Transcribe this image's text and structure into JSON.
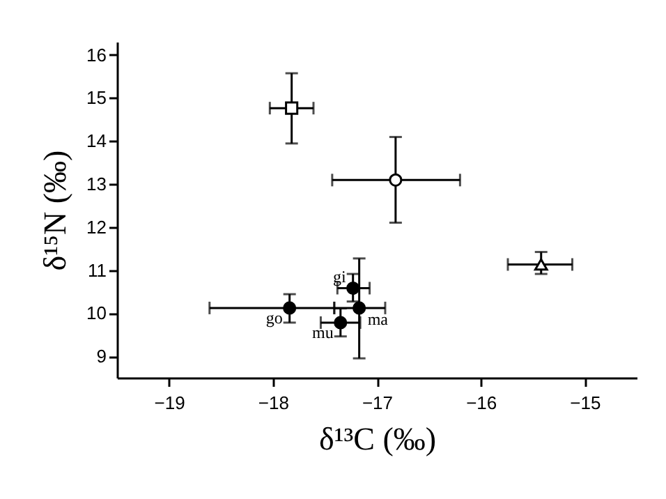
{
  "chart_data": {
    "type": "scatter",
    "xlabel": "δ¹³C (‰)",
    "ylabel": "δ¹⁵N (‰)",
    "xlim": [
      -19.5,
      -14.5
    ],
    "ylim": [
      8.5,
      16.3
    ],
    "xticks": [
      -19,
      -18,
      -17,
      -16,
      -15
    ],
    "yticks": [
      9,
      10,
      11,
      12,
      13,
      14,
      15,
      16
    ],
    "grid": false,
    "series": [
      {
        "color": "#ffffff",
        "marker": "square",
        "x": [
          -17.82
        ],
        "values": [
          14.76
        ],
        "xerrors": [
          [
            -18.03,
            -17.61
          ]
        ],
        "errors": [
          [
            13.94,
            15.57
          ]
        ]
      },
      {
        "color": "#ffffff",
        "marker": "circle",
        "x": [
          -16.82
        ],
        "values": [
          13.09
        ],
        "xerrors": [
          [
            -17.43,
            -16.2
          ]
        ],
        "errors": [
          [
            12.1,
            14.09
          ]
        ]
      },
      {
        "color": "#ffffff",
        "marker": "triangle",
        "x": [
          -15.42
        ],
        "values": [
          11.13
        ],
        "xerrors": [
          [
            -15.74,
            -15.12
          ]
        ],
        "errors": [
          [
            10.91,
            11.42
          ]
        ]
      },
      {
        "color": "#000000",
        "marker": "circle",
        "x": [
          -17.84,
          -17.23,
          -17.17,
          -17.35
        ],
        "values": [
          10.12,
          10.58,
          10.12,
          9.78
        ],
        "xerrors": [
          [
            -18.61,
            -17.41
          ],
          [
            -17.38,
            -17.07
          ],
          [
            -17.41,
            -16.92
          ],
          [
            -17.54,
            -17.16
          ]
        ],
        "errors": [
          [
            9.78,
            10.44
          ],
          [
            10.27,
            10.91
          ],
          [
            8.95,
            11.27
          ],
          [
            9.46,
            10.11
          ]
        ]
      }
    ],
    "annotations": [
      {
        "text": "go",
        "x": -17.84,
        "y": 10.12
      },
      {
        "text": "gi",
        "x": -17.23,
        "y": 10.58
      },
      {
        "text": "ma",
        "x": -17.17,
        "y": 10.12
      },
      {
        "text": "mu",
        "x": -17.35,
        "y": 9.78
      }
    ]
  }
}
